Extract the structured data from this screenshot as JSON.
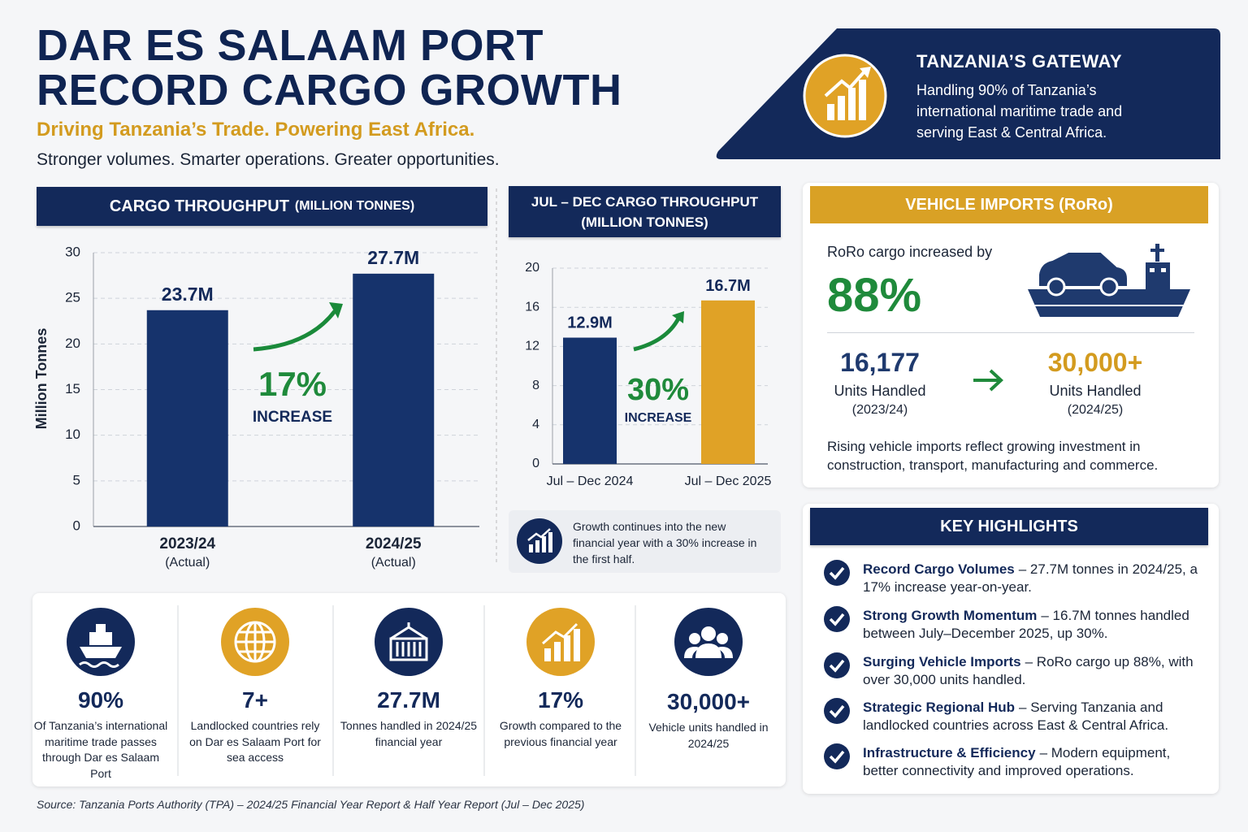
{
  "header": {
    "title_lines": [
      "DAR ES SALAAM PORT",
      "RECORD CARGO GROWTH"
    ],
    "tagline": "Driving Tanzania’s Trade. Powering East Africa.",
    "subtitle": "Stronger volumes. Smarter operations. Greater opportunities."
  },
  "gateway": {
    "title": "TANZANIA’S GATEWAY",
    "text": "Handling 90% of Tanzania’s international maritime trade and serving East & Central Africa."
  },
  "chart_data": [
    {
      "type": "bar",
      "title": "CARGO THROUGHPUT",
      "title_unit": "(MILLION TONNES)",
      "y_label": "Million Tonnes",
      "categories": [
        "2023/24",
        "2024/25"
      ],
      "category_notes": [
        "(Actual)",
        "(Actual)"
      ],
      "values": [
        23.7,
        27.7
      ],
      "value_labels": [
        "23.7M",
        "27.7M"
      ],
      "color": "#16336c",
      "ylim": [
        0,
        30
      ],
      "yticks": [
        0,
        5,
        10,
        15,
        20,
        25,
        30
      ],
      "grid": true,
      "annotation": {
        "value": "17%",
        "label": "INCREASE"
      }
    },
    {
      "type": "bar",
      "title": "JUL – DEC CARGO THROUGHPUT",
      "title_unit": "(MILLION TONNES)",
      "categories": [
        "Jul – Dec 2024",
        "Jul – Dec 2025"
      ],
      "values": [
        12.9,
        16.7
      ],
      "value_labels": [
        "12.9M",
        "16.7M"
      ],
      "colors": [
        "#16336c",
        "#e0a226"
      ],
      "ylim": [
        0,
        20
      ],
      "yticks": [
        0,
        4,
        8,
        12,
        16,
        20
      ],
      "grid": true,
      "annotation": {
        "value": "30%",
        "label": "INCREASE"
      },
      "note": "Growth continues into the new financial year with a 30% increase in the first half."
    }
  ],
  "roro": {
    "title": "VEHICLE IMPORTS (RoRo)",
    "intro": "RoRo cargo increased by",
    "increase": "88%",
    "before": {
      "value": "16,177",
      "label": "Units Handled",
      "period": "(2023/24)"
    },
    "after": {
      "value": "30,000+",
      "label": "Units Handled",
      "period": "(2024/25)"
    },
    "note": "Rising vehicle imports reflect growing investment in construction, transport, manufacturing and commerce."
  },
  "highlights": {
    "title": "KEY HIGHLIGHTS",
    "items": [
      {
        "title": "Record Cargo Volumes",
        "text": "– 27.7M tonnes in 2024/25, a 17% increase year-on-year."
      },
      {
        "title": "Strong Growth Momentum",
        "text": "– 16.7M tonnes handled between July–December 2025, up 30%."
      },
      {
        "title": "Surging Vehicle Imports",
        "text": "– RoRo cargo up 88%, with over 30,000 units handled."
      },
      {
        "title": "Strategic Regional Hub",
        "text": "– Serving Tanzania and landlocked countries across East & Central Africa."
      },
      {
        "title": "Infrastructure & Efficiency",
        "text": "– Modern equipment, better connectivity and improved operations."
      }
    ]
  },
  "stats": [
    {
      "value": "90%",
      "text": "Of Tanzania’s international maritime trade passes through Dar es Salaam Port"
    },
    {
      "value": "7+",
      "text": "Landlocked countries rely on Dar es Salaam Port for sea access"
    },
    {
      "value": "27.7M",
      "text": "Tonnes handled in 2024/25 financial year"
    },
    {
      "value": "17%",
      "text": "Growth compared to the previous financial year"
    },
    {
      "value": "30,000+",
      "text": "Vehicle units handled in 2024/25"
    }
  ],
  "source": "Source: Tanzania Ports Authority (TPA) – 2024/25 Financial Year Report & Half Year Report (Jul – Dec 2025)"
}
